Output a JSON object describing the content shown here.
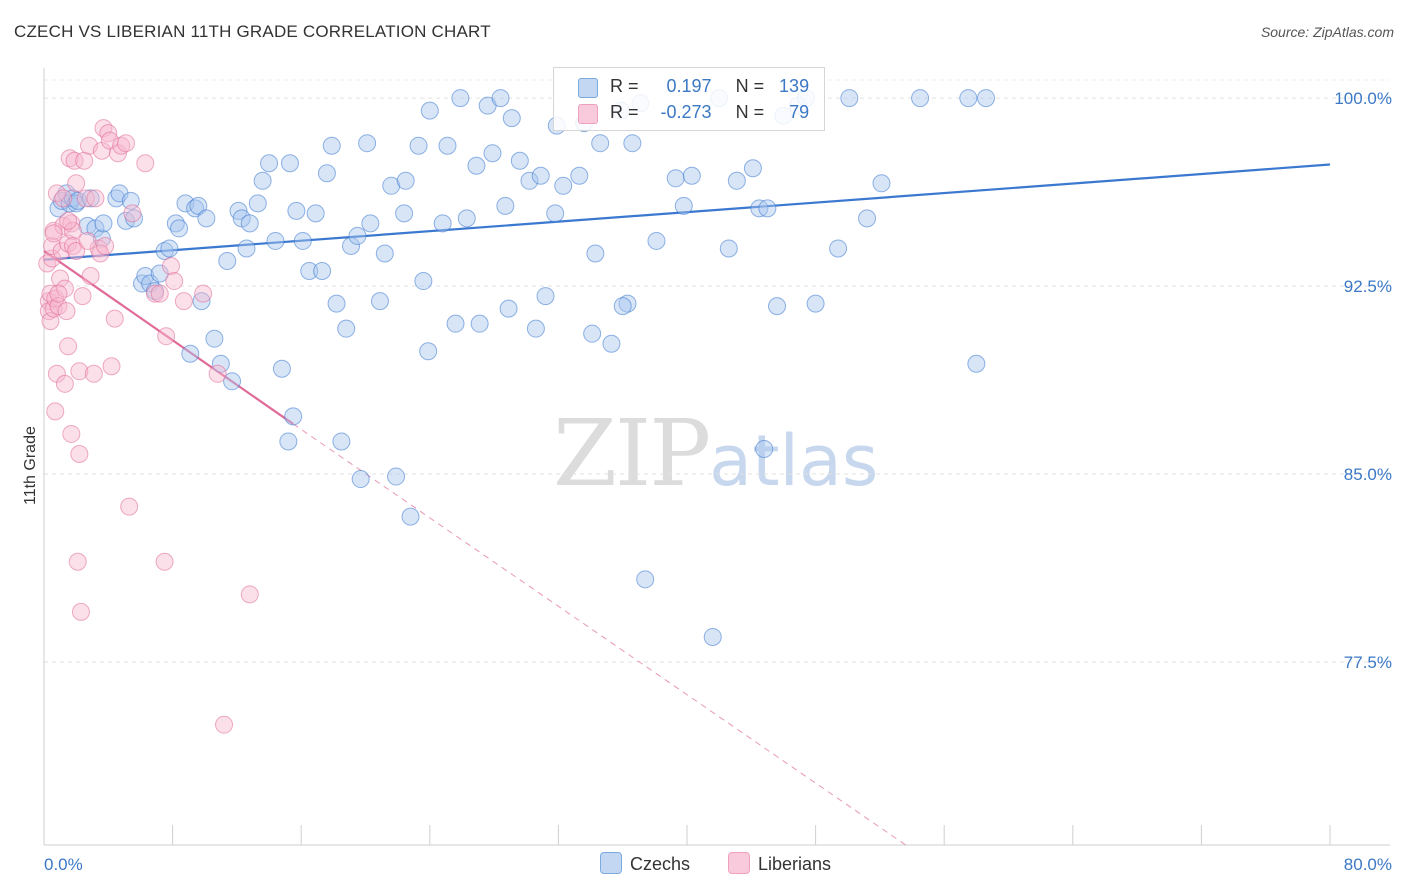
{
  "title": "CZECH VS LIBERIAN 11TH GRADE CORRELATION CHART",
  "source": "Source: ZipAtlas.com",
  "watermark": {
    "zip": "ZIP",
    "atlas": "atlas"
  },
  "legend": {
    "rows": [
      {
        "r_label": "R =",
        "r_value": "0.197",
        "n_label": "N =",
        "n_value": "139",
        "color": "#7aaae0"
      },
      {
        "r_label": "R =",
        "r_value": "-0.273",
        "n_label": "N =",
        "n_value": "79",
        "color": "#f0a0bd"
      }
    ]
  },
  "bottom_legend": [
    {
      "label": "Czechs",
      "color": "#7aaae0"
    },
    {
      "label": "Liberians",
      "color": "#f0a0bd"
    }
  ],
  "chart_data": {
    "type": "scatter",
    "title": "CZECH VS LIBERIAN 11TH GRADE CORRELATION CHART",
    "xlabel": "",
    "ylabel": "11th Grade",
    "xlim": [
      0,
      80
    ],
    "ylim": [
      70.2,
      101.2
    ],
    "x_tick_labels": [
      "0.0%",
      "80.0%"
    ],
    "y_ticks": [
      77.5,
      85.0,
      92.5,
      100.0
    ],
    "y_tick_labels": [
      "77.5%",
      "85.0%",
      "92.5%",
      "100.0%"
    ],
    "grid": true,
    "legend_position": "top-center",
    "series": [
      {
        "name": "Czechs",
        "color": "#3b78d0",
        "fill": "#a9c6ee",
        "trend": {
          "x": [
            0,
            80
          ],
          "y": [
            93.55,
            97.35
          ]
        },
        "points": [
          [
            0.9,
            95.6
          ],
          [
            1.1,
            95.9
          ],
          [
            1.4,
            96.2
          ],
          [
            1.6,
            95.8
          ],
          [
            1.8,
            96.0
          ],
          [
            2.0,
            95.8
          ],
          [
            2.1,
            95.9
          ],
          [
            2.7,
            94.9
          ],
          [
            2.9,
            96.0
          ],
          [
            3.2,
            94.8
          ],
          [
            3.6,
            94.4
          ],
          [
            3.7,
            95.0
          ],
          [
            4.5,
            96.0
          ],
          [
            4.7,
            96.2
          ],
          [
            5.1,
            95.1
          ],
          [
            5.4,
            95.9
          ],
          [
            5.6,
            95.2
          ],
          [
            6.1,
            92.6
          ],
          [
            6.3,
            92.9
          ],
          [
            6.6,
            92.6
          ],
          [
            6.9,
            92.3
          ],
          [
            7.2,
            93.0
          ],
          [
            7.5,
            93.9
          ],
          [
            7.8,
            94.0
          ],
          [
            8.2,
            95.0
          ],
          [
            8.4,
            94.8
          ],
          [
            8.8,
            95.8
          ],
          [
            9.1,
            89.8
          ],
          [
            9.4,
            95.6
          ],
          [
            9.6,
            95.7
          ],
          [
            9.8,
            91.9
          ],
          [
            10.1,
            95.2
          ],
          [
            10.6,
            90.4
          ],
          [
            11.0,
            89.4
          ],
          [
            11.4,
            93.5
          ],
          [
            11.7,
            88.7
          ],
          [
            12.1,
            95.5
          ],
          [
            12.3,
            95.2
          ],
          [
            12.6,
            94.0
          ],
          [
            12.8,
            95.0
          ],
          [
            13.3,
            95.8
          ],
          [
            13.6,
            96.7
          ],
          [
            14.0,
            97.4
          ],
          [
            14.4,
            94.3
          ],
          [
            14.8,
            89.2
          ],
          [
            15.3,
            97.4
          ],
          [
            15.5,
            87.3
          ],
          [
            15.7,
            95.5
          ],
          [
            15.2,
            86.3
          ],
          [
            16.1,
            94.3
          ],
          [
            16.5,
            93.1
          ],
          [
            16.9,
            95.4
          ],
          [
            17.3,
            93.1
          ],
          [
            17.6,
            97.0
          ],
          [
            17.9,
            98.1
          ],
          [
            18.2,
            91.8
          ],
          [
            18.5,
            86.3
          ],
          [
            18.8,
            90.8
          ],
          [
            19.1,
            94.1
          ],
          [
            19.5,
            94.5
          ],
          [
            19.7,
            84.8
          ],
          [
            20.1,
            98.2
          ],
          [
            20.3,
            95.0
          ],
          [
            20.9,
            91.9
          ],
          [
            21.2,
            93.8
          ],
          [
            21.6,
            96.5
          ],
          [
            21.9,
            84.9
          ],
          [
            22.4,
            95.4
          ],
          [
            22.5,
            96.7
          ],
          [
            22.8,
            83.3
          ],
          [
            23.3,
            98.1
          ],
          [
            23.6,
            92.7
          ],
          [
            23.9,
            89.9
          ],
          [
            24.0,
            99.5
          ],
          [
            24.8,
            95.0
          ],
          [
            25.1,
            98.1
          ],
          [
            25.6,
            91.0
          ],
          [
            25.9,
            100.0
          ],
          [
            26.3,
            95.2
          ],
          [
            26.9,
            97.3
          ],
          [
            27.1,
            91.0
          ],
          [
            27.6,
            99.7
          ],
          [
            27.9,
            97.8
          ],
          [
            28.4,
            100.0
          ],
          [
            28.7,
            95.7
          ],
          [
            28.9,
            91.6
          ],
          [
            29.1,
            99.2
          ],
          [
            29.6,
            97.5
          ],
          [
            30.2,
            96.7
          ],
          [
            30.6,
            90.8
          ],
          [
            30.9,
            96.9
          ],
          [
            31.2,
            92.1
          ],
          [
            31.8,
            95.4
          ],
          [
            31.9,
            98.9
          ],
          [
            32.3,
            96.5
          ],
          [
            33.3,
            96.9
          ],
          [
            33.6,
            99.0
          ],
          [
            34.1,
            90.6
          ],
          [
            34.3,
            93.8
          ],
          [
            34.6,
            98.2
          ],
          [
            35.3,
            90.2
          ],
          [
            35.9,
            99.5
          ],
          [
            36.3,
            91.8
          ],
          [
            36.6,
            98.2
          ],
          [
            37.1,
            99.8
          ],
          [
            37.4,
            80.8
          ],
          [
            38.1,
            94.3
          ],
          [
            39.3,
            96.8
          ],
          [
            39.8,
            95.7
          ],
          [
            40.3,
            96.9
          ],
          [
            41.6,
            78.5
          ],
          [
            42.0,
            100.0
          ],
          [
            42.6,
            94.0
          ],
          [
            43.1,
            96.7
          ],
          [
            44.1,
            97.2
          ],
          [
            44.5,
            95.6
          ],
          [
            44.8,
            86.0
          ],
          [
            45.0,
            95.6
          ],
          [
            46.0,
            99.3
          ],
          [
            46.9,
            99.7
          ],
          [
            45.6,
            91.7
          ],
          [
            47.4,
            100.0
          ],
          [
            48.0,
            91.8
          ],
          [
            49.4,
            94.0
          ],
          [
            50.1,
            100.0
          ],
          [
            51.2,
            95.2
          ],
          [
            52.1,
            96.6
          ],
          [
            54.5,
            100.0
          ],
          [
            57.5,
            100.0
          ],
          [
            58.0,
            89.4
          ],
          [
            58.6,
            100.0
          ],
          [
            36.0,
            91.7
          ]
        ]
      },
      {
        "name": "Liberians",
        "color": "#e06b98",
        "fill": "#f6b9cf",
        "trend": {
          "x": [
            0,
            15.5
          ],
          "y": [
            93.9,
            87.0
          ]
        },
        "trend_dashed": {
          "x": [
            15.5,
            53.6
          ],
          "y": [
            87.0,
            70.2
          ]
        },
        "points": [
          [
            0.2,
            93.4
          ],
          [
            0.3,
            91.9
          ],
          [
            0.3,
            91.5
          ],
          [
            0.4,
            91.1
          ],
          [
            0.4,
            92.2
          ],
          [
            0.5,
            93.6
          ],
          [
            0.5,
            94.1
          ],
          [
            0.6,
            94.7
          ],
          [
            0.6,
            91.6
          ],
          [
            0.7,
            92.0
          ],
          [
            0.7,
            87.5
          ],
          [
            0.8,
            89.0
          ],
          [
            0.8,
            96.2
          ],
          [
            0.9,
            91.7
          ],
          [
            1.0,
            92.8
          ],
          [
            1.1,
            93.9
          ],
          [
            1.2,
            94.9
          ],
          [
            1.3,
            88.6
          ],
          [
            1.3,
            92.4
          ],
          [
            1.4,
            91.5
          ],
          [
            1.5,
            94.2
          ],
          [
            1.5,
            90.1
          ],
          [
            1.6,
            97.6
          ],
          [
            1.7,
            95.0
          ],
          [
            1.7,
            86.6
          ],
          [
            1.8,
            94.7
          ],
          [
            1.8,
            94.1
          ],
          [
            1.9,
            97.5
          ],
          [
            2.0,
            96.6
          ],
          [
            2.0,
            93.9
          ],
          [
            2.1,
            81.5
          ],
          [
            2.2,
            85.8
          ],
          [
            2.2,
            89.1
          ],
          [
            2.3,
            79.5
          ],
          [
            2.4,
            92.1
          ],
          [
            2.5,
            97.5
          ],
          [
            2.6,
            96.0
          ],
          [
            2.8,
            98.1
          ],
          [
            2.9,
            92.9
          ],
          [
            3.1,
            89.0
          ],
          [
            3.2,
            96.0
          ],
          [
            3.4,
            94.0
          ],
          [
            3.5,
            93.8
          ],
          [
            3.6,
            97.9
          ],
          [
            3.7,
            98.8
          ],
          [
            3.8,
            94.1
          ],
          [
            4.0,
            98.6
          ],
          [
            4.1,
            98.3
          ],
          [
            4.2,
            89.3
          ],
          [
            4.4,
            91.2
          ],
          [
            4.6,
            97.8
          ],
          [
            4.8,
            98.1
          ],
          [
            5.1,
            98.2
          ],
          [
            5.3,
            83.7
          ],
          [
            5.5,
            95.4
          ],
          [
            6.3,
            97.4
          ],
          [
            6.9,
            92.2
          ],
          [
            7.2,
            92.2
          ],
          [
            7.5,
            81.5
          ],
          [
            7.6,
            90.5
          ],
          [
            7.9,
            93.3
          ],
          [
            8.1,
            92.7
          ],
          [
            8.7,
            91.9
          ],
          [
            9.9,
            92.2
          ],
          [
            10.8,
            89.0
          ],
          [
            11.2,
            75.0
          ],
          [
            12.8,
            80.2
          ],
          [
            1.2,
            96.0
          ],
          [
            0.9,
            92.2
          ],
          [
            1.5,
            95.1
          ],
          [
            2.7,
            94.3
          ],
          [
            0.6,
            94.6
          ]
        ]
      }
    ]
  }
}
